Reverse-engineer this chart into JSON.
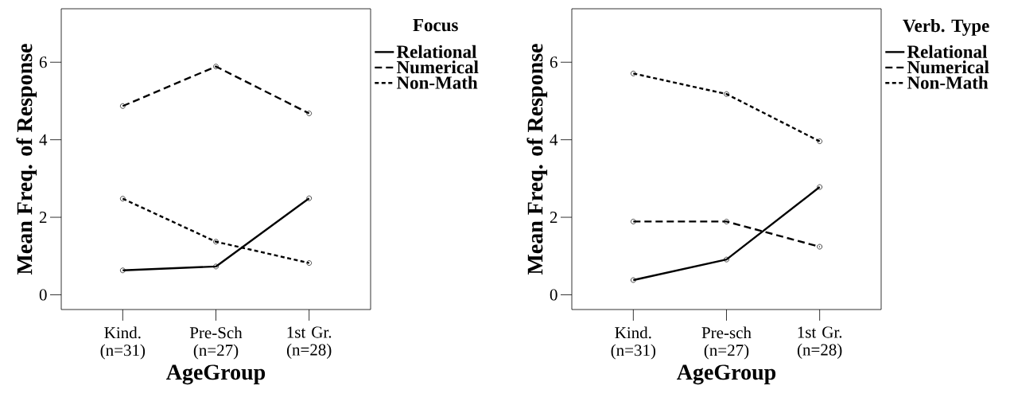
{
  "chart_data": [
    {
      "type": "line",
      "xlabel": "AgeGroup",
      "ylabel": "Mean Freq. of Response",
      "legend_title": "Focus",
      "legend": "top right",
      "marker": "circle",
      "categories": [
        "Kind. (n=31)",
        "Pre-Sch (n=27)",
        "1st Gr. (n=28)"
      ],
      "ylim": [
        -0.38,
        7.38
      ],
      "yticks": [
        0,
        2,
        4,
        6
      ],
      "series": [
        {
          "name": "Relational",
          "color": "#000000",
          "line_style": "solid",
          "values": [
            0.63,
            0.73,
            2.49
          ]
        },
        {
          "name": "Numerical",
          "color": "#000000",
          "line_style": "dashed",
          "values": [
            4.87,
            5.89,
            4.68
          ]
        },
        {
          "name": "Non-Math",
          "color": "#000000",
          "line_style": "dotted",
          "values": [
            2.48,
            1.37,
            0.82
          ]
        }
      ]
    },
    {
      "type": "line",
      "xlabel": "AgeGroup",
      "ylabel": "Mean Freq. of Response",
      "legend_title": "Verb. Type",
      "legend": "top right",
      "marker": "circle",
      "categories": [
        "Kind. (n=31)",
        "Pre-sch (n=27)",
        "1st Gr. (n=28)"
      ],
      "ylim": [
        -0.38,
        7.38
      ],
      "yticks": [
        0,
        2,
        4,
        6
      ],
      "series": [
        {
          "name": "Relational",
          "color": "#000000",
          "line_style": "solid",
          "values": [
            0.38,
            0.91,
            2.78
          ]
        },
        {
          "name": "Numerical",
          "color": "#000000",
          "line_style": "dashed",
          "values": [
            1.89,
            1.89,
            1.24
          ]
        },
        {
          "name": "Non-Math",
          "color": "#000000",
          "line_style": "dotted",
          "values": [
            5.71,
            5.18,
            3.96
          ]
        }
      ]
    }
  ]
}
